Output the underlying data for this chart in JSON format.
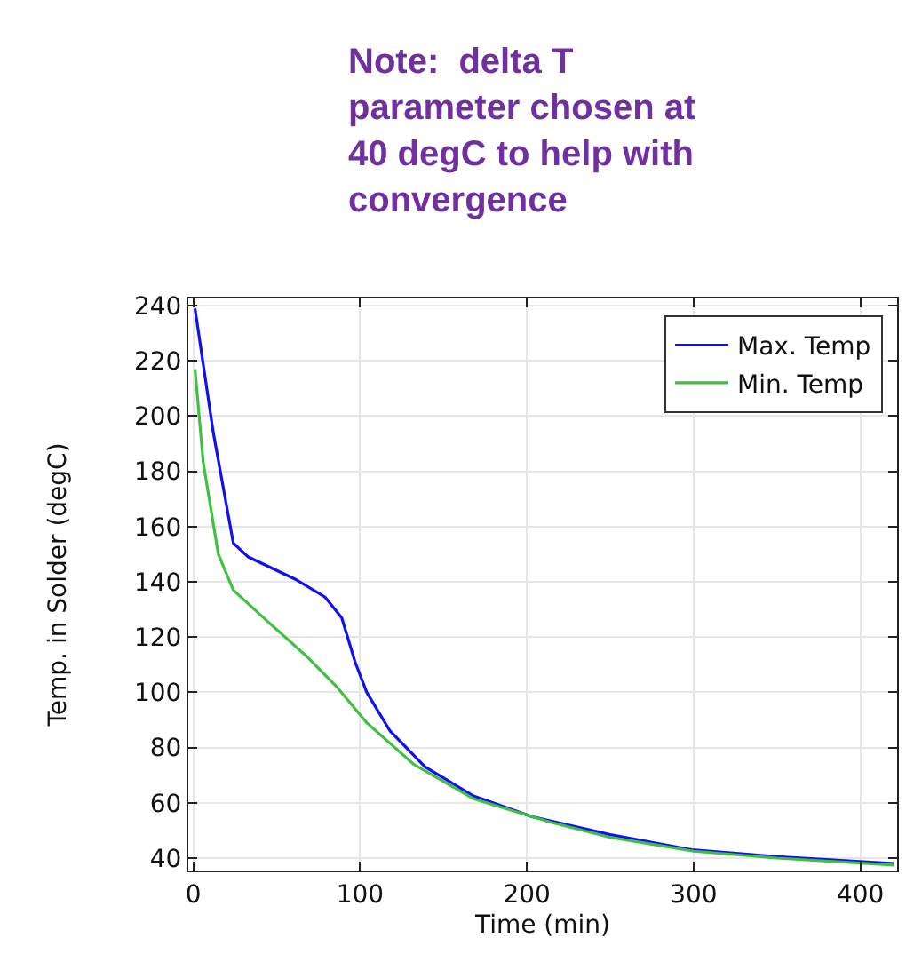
{
  "chart_data": {
    "type": "line",
    "xlabel": "Time (min)",
    "ylabel": "Temp. in Solder (degC)",
    "annotations": [
      "Note:  delta T\nparameter chosen at\n40 degC to help with\nconvergence"
    ],
    "xlim": [
      -3,
      422
    ],
    "xticks": [
      0,
      100,
      200,
      300,
      400
    ],
    "ylim": [
      35.5,
      242.6
    ],
    "yticks": [
      40,
      60,
      80,
      100,
      120,
      140,
      160,
      180,
      200,
      220,
      240
    ],
    "grid": true,
    "legend": "top right",
    "line_style": "solid",
    "marker": "none",
    "series": [
      {
        "name": "Max. Temp",
        "color": "#1010f0",
        "x": [
          1,
          12,
          24,
          33,
          61,
          79,
          89,
          97,
          104,
          118,
          139,
          168,
          203,
          250,
          299,
          350,
          420
        ],
        "values": [
          239,
          194,
          154,
          149,
          141,
          134.5,
          127,
          111,
          100,
          86,
          73,
          62.5,
          55,
          48.5,
          43,
          40.5,
          38
        ]
      },
      {
        "name": "Min. Temp",
        "color": "#40c040",
        "x": [
          1,
          6,
          15,
          24,
          44,
          68,
          86,
          104,
          132,
          168,
          214,
          250,
          300,
          350,
          420
        ],
        "values": [
          217,
          183,
          150,
          137,
          126,
          113,
          102,
          89,
          74,
          61.5,
          53,
          47.5,
          42.5,
          40,
          37.5
        ]
      }
    ]
  }
}
